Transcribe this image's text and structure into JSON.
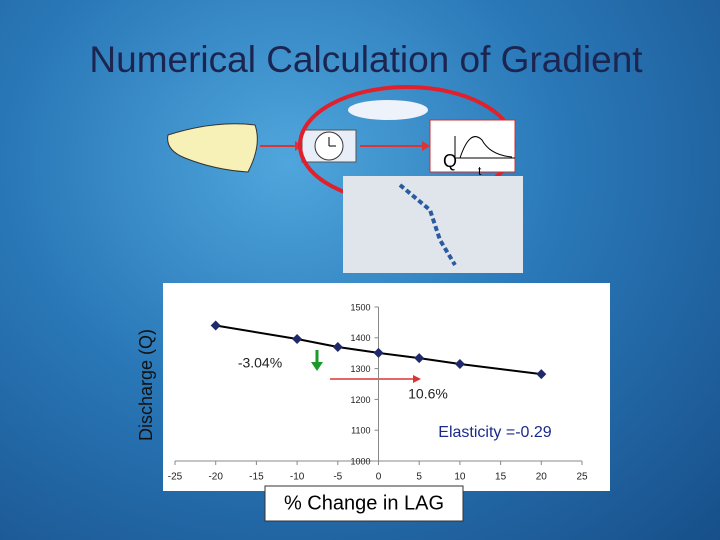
{
  "chart_data": {
    "type": "line",
    "title": "Numerical Calculation of Gradient",
    "y_label": "Discharge (Q)",
    "x_label": "% Change in LAG",
    "x": [
      -20,
      -10,
      -5,
      0,
      5,
      10,
      20
    ],
    "series": [
      {
        "values": [
          1440,
          1396,
          1370,
          1351,
          1334,
          1315,
          1282
        ],
        "color": "#1f2a6b"
      }
    ],
    "xlim": [
      -25,
      25
    ],
    "xticks": [
      -25,
      -20,
      -15,
      -10,
      -5,
      0,
      5,
      10,
      15,
      20,
      25
    ],
    "ylim": [
      1000,
      1500
    ],
    "yticks": [
      1000,
      1100,
      1200,
      1300,
      1400,
      1500
    ],
    "annotations": [
      "-3.04%",
      "10.6%",
      "Elasticity =-0.29"
    ]
  },
  "hydrograph": {
    "y_label": "Q",
    "x_label": "t"
  }
}
